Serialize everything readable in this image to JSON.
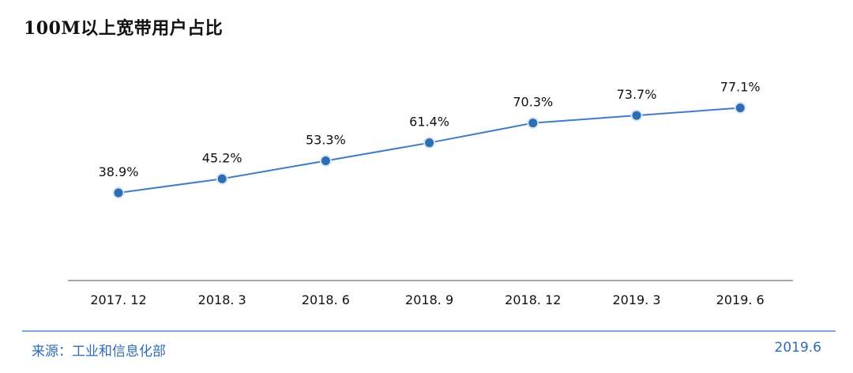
{
  "title": "100M以上宽带用户占比",
  "footer": {
    "source": "来源：工业和信息化部",
    "date": "2019.6"
  },
  "colors": {
    "line": "#3f7dc4",
    "marker": "#2e6db4",
    "axis": "#8a8a8a",
    "footer": "#2e6db4"
  },
  "chart_data": {
    "type": "line",
    "title": "100M以上宽带用户占比",
    "categories": [
      "2017. 12",
      "2018. 3",
      "2018. 6",
      "2018. 9",
      "2018. 12",
      "2019. 3",
      "2019. 6"
    ],
    "series": [
      {
        "values": [
          38.9,
          45.2,
          53.3,
          61.4,
          70.3,
          73.7,
          77.1
        ],
        "labels": [
          "38.9%",
          "45.2%",
          "53.3%",
          "61.4%",
          "70.3%",
          "73.7%",
          "77.1%"
        ]
      }
    ],
    "grid": false,
    "legend": "none"
  }
}
